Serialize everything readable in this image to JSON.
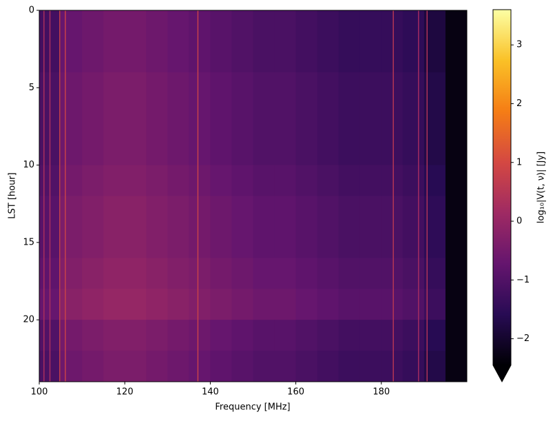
{
  "chart_data": {
    "type": "heatmap",
    "xlabel": "Frequency [MHz]",
    "ylabel": "LST [hour]",
    "xlim": [
      100,
      200
    ],
    "ylim": [
      0,
      24
    ],
    "y_inverted": true,
    "xticks": [
      100,
      120,
      140,
      160,
      180
    ],
    "yticks": [
      0,
      5,
      10,
      15,
      20
    ],
    "xbins": [
      100,
      105,
      110,
      115,
      120,
      125,
      130,
      135,
      140,
      145,
      150,
      155,
      160,
      165,
      170,
      175,
      180,
      185,
      190,
      195,
      200
    ],
    "ybins": [
      0,
      2,
      4,
      6,
      8,
      10,
      12,
      14,
      16,
      18,
      20,
      22,
      24
    ],
    "values": [
      [
        -1.2,
        -0.7,
        -0.6,
        -0.5,
        -0.5,
        -0.6,
        -0.7,
        -0.8,
        -0.9,
        -1.0,
        -1.1,
        -1.1,
        -1.2,
        -1.3,
        -1.4,
        -1.4,
        -1.4,
        -1.5,
        -1.8,
        -2.3
      ],
      [
        -1.2,
        -0.7,
        -0.6,
        -0.5,
        -0.5,
        -0.6,
        -0.7,
        -0.8,
        -0.9,
        -1.0,
        -1.1,
        -1.1,
        -1.2,
        -1.3,
        -1.4,
        -1.4,
        -1.4,
        -1.5,
        -1.8,
        -2.3
      ],
      [
        -1.1,
        -0.6,
        -0.5,
        -0.4,
        -0.4,
        -0.5,
        -0.6,
        -0.7,
        -0.8,
        -0.9,
        -1.0,
        -1.0,
        -1.1,
        -1.2,
        -1.3,
        -1.3,
        -1.3,
        -1.4,
        -1.7,
        -2.3
      ],
      [
        -1.1,
        -0.6,
        -0.5,
        -0.4,
        -0.4,
        -0.5,
        -0.6,
        -0.7,
        -0.8,
        -0.9,
        -1.0,
        -1.0,
        -1.1,
        -1.2,
        -1.3,
        -1.3,
        -1.3,
        -1.4,
        -1.7,
        -2.3
      ],
      [
        -1.1,
        -0.6,
        -0.5,
        -0.4,
        -0.4,
        -0.5,
        -0.6,
        -0.7,
        -0.8,
        -0.9,
        -1.0,
        -1.0,
        -1.1,
        -1.2,
        -1.3,
        -1.3,
        -1.3,
        -1.4,
        -1.7,
        -2.3
      ],
      [
        -1.0,
        -0.5,
        -0.4,
        -0.3,
        -0.3,
        -0.4,
        -0.5,
        -0.6,
        -0.7,
        -0.8,
        -0.9,
        -0.9,
        -1.0,
        -1.1,
        -1.2,
        -1.2,
        -1.2,
        -1.3,
        -1.6,
        -2.3
      ],
      [
        -0.9,
        -0.4,
        -0.3,
        -0.2,
        -0.2,
        -0.3,
        -0.4,
        -0.5,
        -0.6,
        -0.7,
        -0.8,
        -0.8,
        -0.9,
        -1.0,
        -1.1,
        -1.1,
        -1.1,
        -1.2,
        -1.5,
        -2.3
      ],
      [
        -0.9,
        -0.4,
        -0.3,
        -0.2,
        -0.2,
        -0.3,
        -0.4,
        -0.5,
        -0.6,
        -0.7,
        -0.8,
        -0.8,
        -0.9,
        -1.0,
        -1.1,
        -1.1,
        -1.1,
        -1.2,
        -1.5,
        -2.3
      ],
      [
        -0.8,
        -0.3,
        -0.2,
        -0.1,
        -0.1,
        -0.2,
        -0.3,
        -0.4,
        -0.5,
        -0.6,
        -0.7,
        -0.7,
        -0.8,
        -0.9,
        -1.0,
        -1.0,
        -1.0,
        -1.1,
        -1.4,
        -2.3
      ],
      [
        -0.7,
        -0.2,
        -0.1,
        0.0,
        0.0,
        -0.1,
        -0.2,
        -0.3,
        -0.4,
        -0.5,
        -0.6,
        -0.6,
        -0.7,
        -0.8,
        -0.9,
        -0.9,
        -0.9,
        -1.0,
        -1.3,
        -2.3
      ],
      [
        -1.0,
        -0.5,
        -0.4,
        -0.3,
        -0.3,
        -0.4,
        -0.5,
        -0.6,
        -0.7,
        -0.8,
        -0.9,
        -0.9,
        -1.0,
        -1.1,
        -1.2,
        -1.2,
        -1.2,
        -1.3,
        -1.6,
        -2.3
      ],
      [
        -1.1,
        -0.6,
        -0.5,
        -0.4,
        -0.4,
        -0.5,
        -0.6,
        -0.7,
        -0.8,
        -0.9,
        -1.0,
        -1.0,
        -1.1,
        -1.2,
        -1.3,
        -1.3,
        -1.3,
        -1.4,
        -1.7,
        -2.3
      ]
    ],
    "lines": {
      "x": [
        101.1,
        102.5,
        104.8,
        106.1,
        137.1,
        182.8,
        188.7,
        190.7
      ],
      "values": [
        0.3,
        0.3,
        0.8,
        0.8,
        0.8,
        0.5,
        0.2,
        0.4
      ]
    },
    "colormap": "inferno",
    "clim": [
      -2.45,
      3.6
    ],
    "extend": "min",
    "colorbar_label": "log₁₀|V(t, ν)| [Jy]",
    "colorbar_ticks": [
      {
        "value": -2,
        "label": "−2"
      },
      {
        "value": -1,
        "label": "−1"
      },
      0,
      1,
      2,
      3
    ]
  }
}
